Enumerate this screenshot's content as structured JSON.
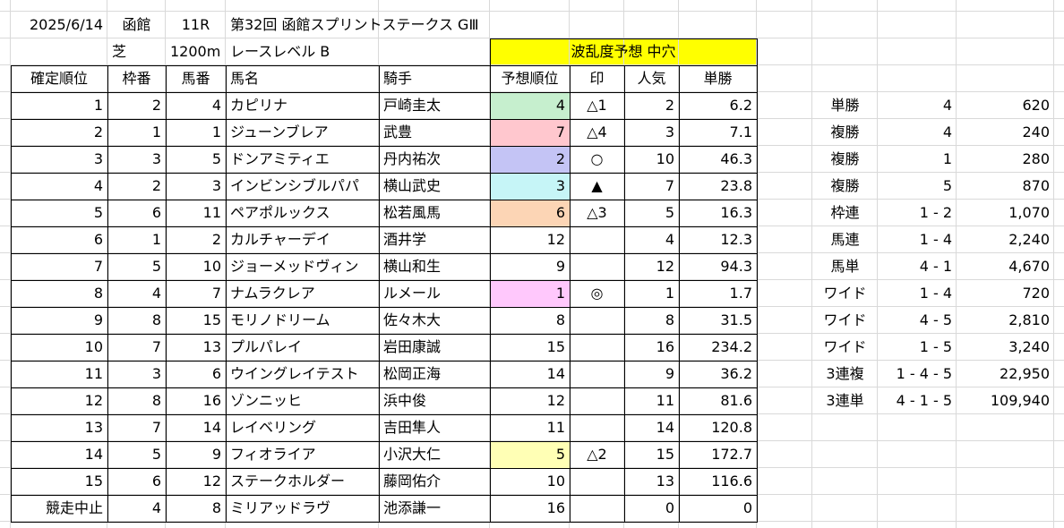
{
  "header": {
    "date": "2025/6/14",
    "venue": "函館",
    "race_no": "11R",
    "race_name": "第32回 函館スプリントステークス GⅢ",
    "surface": "芝",
    "distance": "1200m",
    "race_level": "レースレベル B",
    "upset_forecast": "波乱度予想 中穴"
  },
  "columns": [
    "確定順位",
    "枠番",
    "馬番",
    "馬名",
    "騎手",
    "予想順位",
    "印",
    "人気",
    "単勝"
  ],
  "rows": [
    {
      "place": "1",
      "waku": "2",
      "umaban": "4",
      "horse": "カピリナ",
      "jockey": "戸崎圭太",
      "pred": "4",
      "mark": "△1",
      "pop": "2",
      "odds": "6.2"
    },
    {
      "place": "2",
      "waku": "1",
      "umaban": "1",
      "horse": "ジューンブレア",
      "jockey": "武豊",
      "pred": "7",
      "mark": "△4",
      "pop": "3",
      "odds": "7.1"
    },
    {
      "place": "3",
      "waku": "3",
      "umaban": "5",
      "horse": "ドンアミティエ",
      "jockey": "丹内祐次",
      "pred": "2",
      "mark": "○",
      "pop": "10",
      "odds": "46.3"
    },
    {
      "place": "4",
      "waku": "2",
      "umaban": "3",
      "horse": "インビンシブルパパ",
      "jockey": "横山武史",
      "pred": "3",
      "mark": "▲",
      "pop": "7",
      "odds": "23.8"
    },
    {
      "place": "5",
      "waku": "6",
      "umaban": "11",
      "horse": "ペアポルックス",
      "jockey": "松若風馬",
      "pred": "6",
      "mark": "△3",
      "pop": "5",
      "odds": "16.3"
    },
    {
      "place": "6",
      "waku": "1",
      "umaban": "2",
      "horse": "カルチャーデイ",
      "jockey": "酒井学",
      "pred": "12",
      "mark": "",
      "pop": "4",
      "odds": "12.3"
    },
    {
      "place": "7",
      "waku": "5",
      "umaban": "10",
      "horse": "ジョーメッドヴィン",
      "jockey": "横山和生",
      "pred": "9",
      "mark": "",
      "pop": "12",
      "odds": "94.3"
    },
    {
      "place": "8",
      "waku": "4",
      "umaban": "7",
      "horse": "ナムラクレア",
      "jockey": "ルメール",
      "pred": "1",
      "mark": "◎",
      "pop": "1",
      "odds": "1.7"
    },
    {
      "place": "9",
      "waku": "8",
      "umaban": "15",
      "horse": "モリノドリーム",
      "jockey": "佐々木大",
      "pred": "8",
      "mark": "",
      "pop": "8",
      "odds": "31.5"
    },
    {
      "place": "10",
      "waku": "7",
      "umaban": "13",
      "horse": "プルパレイ",
      "jockey": "岩田康誠",
      "pred": "15",
      "mark": "",
      "pop": "16",
      "odds": "234.2"
    },
    {
      "place": "11",
      "waku": "3",
      "umaban": "6",
      "horse": "ウイングレイテスト",
      "jockey": "松岡正海",
      "pred": "14",
      "mark": "",
      "pop": "9",
      "odds": "36.2"
    },
    {
      "place": "12",
      "waku": "8",
      "umaban": "16",
      "horse": "ゾンニッヒ",
      "jockey": "浜中俊",
      "pred": "12",
      "mark": "",
      "pop": "11",
      "odds": "81.6"
    },
    {
      "place": "13",
      "waku": "7",
      "umaban": "14",
      "horse": "レイベリング",
      "jockey": "吉田隼人",
      "pred": "11",
      "mark": "",
      "pop": "14",
      "odds": "120.8"
    },
    {
      "place": "14",
      "waku": "5",
      "umaban": "9",
      "horse": "フィオライア",
      "jockey": "小沢大仁",
      "pred": "5",
      "mark": "△2",
      "pop": "15",
      "odds": "172.7"
    },
    {
      "place": "15",
      "waku": "6",
      "umaban": "12",
      "horse": "ステークホルダー",
      "jockey": "藤岡佑介",
      "pred": "10",
      "mark": "",
      "pop": "13",
      "odds": "116.6"
    },
    {
      "place": "競走中止",
      "waku": "4",
      "umaban": "8",
      "horse": "ミリアッドラヴ",
      "jockey": "池添謙一",
      "pred": "16",
      "mark": "",
      "pop": "0",
      "odds": "0"
    }
  ],
  "pred_highlight_colors": {
    "0": "#c6efce",
    "1": "#ffc7ce",
    "2": "#c4c4f5",
    "3": "#c6f5f7",
    "4": "#fcd5b5",
    "7": "#ffc8fc",
    "13": "#ffffb5"
  },
  "header_highlight_color": "#ffff00",
  "payouts": [
    {
      "type": "単勝",
      "combo": "4",
      "amount": "620"
    },
    {
      "type": "複勝",
      "combo": "4",
      "amount": "240"
    },
    {
      "type": "複勝",
      "combo": "1",
      "amount": "280"
    },
    {
      "type": "複勝",
      "combo": "5",
      "amount": "870"
    },
    {
      "type": "枠連",
      "combo": "1 - 2",
      "amount": "1,070"
    },
    {
      "type": "馬連",
      "combo": "1 - 4",
      "amount": "2,240"
    },
    {
      "type": "馬単",
      "combo": "4 - 1",
      "amount": "4,670"
    },
    {
      "type": "ワイド",
      "combo": "1 - 4",
      "amount": "720"
    },
    {
      "type": "ワイド",
      "combo": "4 - 5",
      "amount": "2,810"
    },
    {
      "type": "ワイド",
      "combo": "1 - 5",
      "amount": "3,240"
    },
    {
      "type": "3連複",
      "combo": "1 - 4 - 5",
      "amount": "22,950"
    },
    {
      "type": "3連単",
      "combo": "4 - 1 - 5",
      "amount": "109,940"
    }
  ]
}
